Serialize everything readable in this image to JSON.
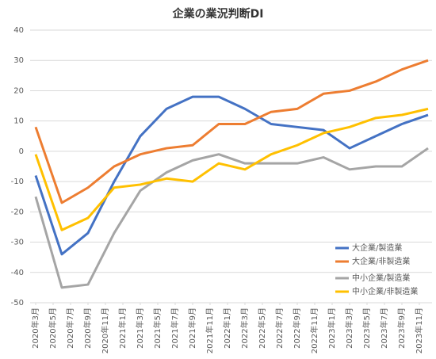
{
  "chart_data": {
    "type": "line",
    "title": "企業の業況判断DI",
    "x": [
      "2020-03",
      "2020-06",
      "2020-09",
      "2020-12",
      "2021-03",
      "2021-06",
      "2021-09",
      "2021-12",
      "2022-03",
      "2022-06",
      "2022-09",
      "2022-12",
      "2023-03",
      "2023-06",
      "2023-09",
      "2023-12"
    ],
    "xlim": [
      "2020-03",
      "2023-12"
    ],
    "xticks": [
      {
        "value": "2020-03",
        "label": "2020年3月"
      },
      {
        "value": "2020-05",
        "label": "2020年5月"
      },
      {
        "value": "2020-07",
        "label": "2020年7月"
      },
      {
        "value": "2020-09",
        "label": "2020年9月"
      },
      {
        "value": "2020-11",
        "label": "2020年11月"
      },
      {
        "value": "2021-01",
        "label": "2021年1月"
      },
      {
        "value": "2021-03",
        "label": "2021年3月"
      },
      {
        "value": "2021-05",
        "label": "2021年5月"
      },
      {
        "value": "2021-07",
        "label": "2021年7月"
      },
      {
        "value": "2021-09",
        "label": "2021年9月"
      },
      {
        "value": "2021-11",
        "label": "2021年11月"
      },
      {
        "value": "2022-01",
        "label": "2022年1月"
      },
      {
        "value": "2022-03",
        "label": "2022年3月"
      },
      {
        "value": "2022-05",
        "label": "2022年5月"
      },
      {
        "value": "2022-07",
        "label": "2022年7月"
      },
      {
        "value": "2022-09",
        "label": "2022年9月"
      },
      {
        "value": "2022-11",
        "label": "2022年11月"
      },
      {
        "value": "2023-01",
        "label": "2023年1月"
      },
      {
        "value": "2023-03",
        "label": "2023年3月"
      },
      {
        "value": "2023-05",
        "label": "2023年5月"
      },
      {
        "value": "2023-07",
        "label": "2023年7月"
      },
      {
        "value": "2023-09",
        "label": "2023年9月"
      },
      {
        "value": "2023-11",
        "label": "2023年11月"
      }
    ],
    "ylim": [
      -50,
      40
    ],
    "yticks": [
      -50,
      -40,
      -30,
      -20,
      -10,
      0,
      10,
      20,
      30,
      40
    ],
    "grid": true,
    "legend": "lower-right",
    "series": [
      {
        "name": "大企業/製造業",
        "color": "#4472c4",
        "values": [
          -8,
          -34,
          -27,
          -10,
          5,
          14,
          18,
          18,
          14,
          9,
          8,
          7,
          1,
          5,
          9,
          12
        ]
      },
      {
        "name": "大企業/非製造業",
        "color": "#ed7d31",
        "values": [
          8,
          -17,
          -12,
          -5,
          -1,
          1,
          2,
          9,
          9,
          13,
          14,
          19,
          20,
          23,
          27,
          30
        ]
      },
      {
        "name": "中小企業/製造業",
        "color": "#a5a5a5",
        "values": [
          -15,
          -45,
          -44,
          -27,
          -13,
          -7,
          -3,
          -1,
          -4,
          -4,
          -4,
          -2,
          -6,
          -5,
          -5,
          1
        ]
      },
      {
        "name": "中小企業/非製造業",
        "color": "#ffc000",
        "values": [
          -1,
          -26,
          -22,
          -12,
          -11,
          -9,
          -10,
          -4,
          -6,
          -1,
          2,
          6,
          8,
          11,
          12,
          14
        ]
      }
    ]
  }
}
